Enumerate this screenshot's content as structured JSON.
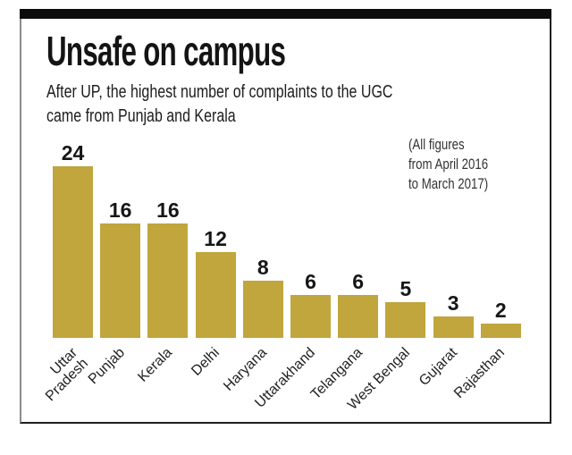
{
  "panel": {
    "top_bar_color": "#0c0c0c",
    "border_color": "#1f1f1f",
    "background": "#ffffff"
  },
  "header": {
    "title": "Unsafe on campus",
    "subtitle": "After UP, the highest number of complaints to the UGC came from Punjab and Kerala",
    "subtitle_lines": [
      "After UP, the highest number of complaints to the UGC",
      "came from Punjab and Kerala"
    ]
  },
  "annotation": {
    "text": "(All figures from April 2016 to March 2017)",
    "lines": [
      "(All figures",
      "from April 2016",
      "to March 2017)"
    ]
  },
  "chart_data": {
    "type": "bar",
    "title": "Unsafe on campus",
    "subtitle": "After UP, the highest number of complaints to the UGC came from Punjab and Kerala",
    "annotation": "(All figures from April 2016 to March 2017)",
    "categories": [
      "Uttar Pradesh",
      "Punjab",
      "Kerala",
      "Delhi",
      "Haryana",
      "Uttarakhand",
      "Telangana",
      "West Bengal",
      "Gujarat",
      "Rajasthan"
    ],
    "values": [
      24,
      16,
      16,
      12,
      8,
      6,
      6,
      5,
      3,
      2
    ],
    "label_lines": [
      [
        "Uttar",
        "Pradesh"
      ],
      [
        "Punjab"
      ],
      [
        "Kerala"
      ],
      [
        "Delhi"
      ],
      [
        "Haryana"
      ],
      [
        "Uttarakhand"
      ],
      [
        "Telangana"
      ],
      [
        "West Bengal"
      ],
      [
        "Gujarat"
      ],
      [
        "Rajasthan"
      ]
    ],
    "bar_color": "#c1a53d",
    "value_label_color": "#161616",
    "xlabel": "",
    "ylabel": "",
    "ylim": [
      0,
      24
    ],
    "grid": false,
    "legend": null,
    "value_labels_shown": true,
    "x_tick_rotation_deg": 45
  }
}
